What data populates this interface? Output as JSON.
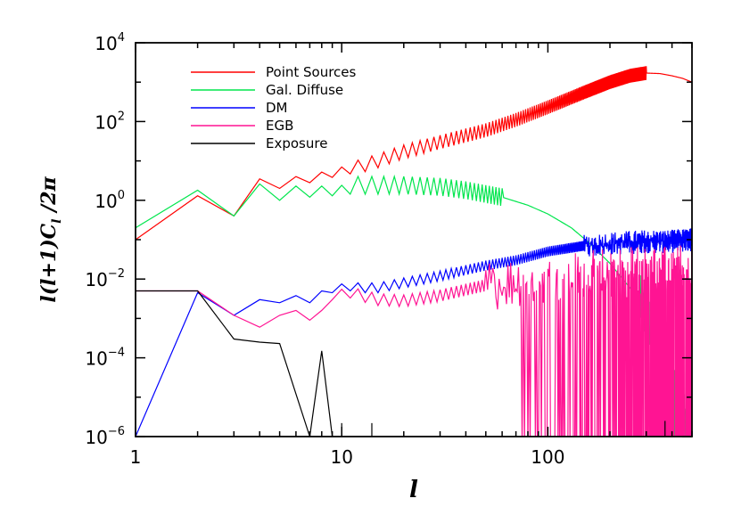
{
  "chart_data": {
    "type": "line",
    "title": "",
    "xlabel": "l",
    "ylabel": "l(l+1)C_l /2π",
    "x_scale": "log",
    "y_scale": "log",
    "xlim": [
      1,
      500
    ],
    "ylim": [
      1e-06,
      10000.0
    ],
    "x_ticks": [
      {
        "value": 1,
        "label": "1"
      },
      {
        "value": 10,
        "label": "10"
      },
      {
        "value": 100,
        "label": "100"
      }
    ],
    "y_ticks": [
      {
        "value": 1e-06,
        "base": "10",
        "exp": "−6"
      },
      {
        "value": 0.0001,
        "base": "10",
        "exp": "−4"
      },
      {
        "value": 0.01,
        "base": "10",
        "exp": "−2"
      },
      {
        "value": 1,
        "base": "10",
        "exp": "0"
      },
      {
        "value": 100,
        "base": "10",
        "exp": "2"
      },
      {
        "value": 10000,
        "base": "10",
        "exp": "4"
      }
    ],
    "legend_position": "top-left",
    "series": [
      {
        "name": "Point Sources",
        "color": "#ff0000",
        "style": "smooth",
        "points": [
          [
            1,
            0.1
          ],
          [
            2,
            1.3
          ],
          [
            3,
            0.4
          ],
          [
            4,
            3.5
          ],
          [
            5,
            2.0
          ],
          [
            6,
            4.0
          ],
          [
            7,
            2.8
          ],
          [
            8,
            5.2
          ],
          [
            9,
            3.8
          ],
          [
            10,
            7.0
          ],
          [
            12,
            7.0
          ],
          [
            15,
            10
          ],
          [
            20,
            17
          ],
          [
            30,
            30
          ],
          [
            50,
            60
          ],
          [
            70,
            110
          ],
          [
            100,
            230
          ],
          [
            150,
            550
          ],
          [
            200,
            1000
          ],
          [
            250,
            1450
          ],
          [
            300,
            1700
          ],
          [
            350,
            1650
          ],
          [
            400,
            1450
          ],
          [
            450,
            1250
          ],
          [
            500,
            1000
          ]
        ],
        "zigzag_amp": 0.35,
        "zigzag_start": 10,
        "zigzag_end": 300,
        "zigzag_step": 1
      },
      {
        "name": "Gal. Diffuse",
        "color": "#00e64d",
        "style": "smooth",
        "points": [
          [
            1,
            0.2
          ],
          [
            2,
            1.8
          ],
          [
            3,
            0.4
          ],
          [
            4,
            2.6
          ],
          [
            5,
            1.0
          ],
          [
            6,
            2.3
          ],
          [
            7,
            1.2
          ],
          [
            8,
            2.3
          ],
          [
            9,
            1.3
          ],
          [
            10,
            2.4
          ],
          [
            15,
            2.4
          ],
          [
            20,
            2.4
          ],
          [
            30,
            2.2
          ],
          [
            40,
            1.8
          ],
          [
            60,
            1.2
          ],
          [
            80,
            0.75
          ],
          [
            100,
            0.45
          ],
          [
            130,
            0.2
          ],
          [
            160,
            0.08
          ],
          [
            200,
            0.025
          ],
          [
            250,
            0.006
          ],
          [
            300,
            0.0012
          ],
          [
            350,
            0.0002
          ],
          [
            400,
            3e-05
          ],
          [
            450,
            4e-06
          ],
          [
            500,
            2e-06
          ]
        ],
        "zigzag_amp": 0.45,
        "zigzag_start": 10,
        "zigzag_end": 60,
        "zigzag_step": 1,
        "noise_amp": 1.6,
        "noise_start": 280
      },
      {
        "name": "DM",
        "color": "#0000ff",
        "style": "smooth",
        "points": [
          [
            1,
            1e-06
          ],
          [
            2,
            0.0045
          ],
          [
            3,
            0.0012
          ],
          [
            4,
            0.003
          ],
          [
            5,
            0.0025
          ],
          [
            6,
            0.0038
          ],
          [
            7,
            0.0025
          ],
          [
            8,
            0.005
          ],
          [
            9,
            0.0045
          ],
          [
            10,
            0.0075
          ],
          [
            12,
            0.006
          ],
          [
            15,
            0.006
          ],
          [
            20,
            0.008
          ],
          [
            30,
            0.012
          ],
          [
            50,
            0.022
          ],
          [
            70,
            0.03
          ],
          [
            100,
            0.05
          ],
          [
            150,
            0.07
          ],
          [
            200,
            0.08
          ],
          [
            300,
            0.09
          ],
          [
            400,
            0.09
          ],
          [
            500,
            0.1
          ]
        ],
        "zigzag_amp": 0.25,
        "zigzag_start": 10,
        "zigzag_end": 500,
        "zigzag_step": 1,
        "noise_amp": 0.35,
        "noise_start": 150
      },
      {
        "name": "EGB",
        "color": "#ff1493",
        "style": "smooth",
        "points": [
          [
            1,
            0.005
          ],
          [
            2,
            0.005
          ],
          [
            3,
            0.0012
          ],
          [
            4,
            0.0006
          ],
          [
            5,
            0.0012
          ],
          [
            6,
            0.0016
          ],
          [
            7,
            0.0009
          ],
          [
            8,
            0.0016
          ],
          [
            9,
            0.003
          ],
          [
            10,
            0.0055
          ],
          [
            12,
            0.004
          ],
          [
            15,
            0.003
          ],
          [
            20,
            0.0028
          ],
          [
            30,
            0.0038
          ],
          [
            50,
            0.007
          ],
          [
            70,
            0.0085
          ],
          [
            100,
            0.011
          ],
          [
            150,
            0.012
          ],
          [
            200,
            0.015
          ],
          [
            300,
            0.016
          ],
          [
            500,
            0.016
          ]
        ],
        "zigzag_amp": 0.3,
        "zigzag_start": 10,
        "zigzag_end": 500,
        "zigzag_step": 1,
        "noise_amp": 1.0,
        "noise_start": 50,
        "dropout_start": 75,
        "dropout_prob": 0.45
      },
      {
        "name": "Exposure",
        "color": "#000000",
        "style": "polyline",
        "points": [
          [
            1,
            0.005
          ],
          [
            2,
            0.005
          ],
          [
            3,
            0.0003
          ],
          [
            4,
            0.00025
          ],
          [
            5,
            0.00023
          ],
          [
            7,
            1e-06
          ],
          [
            8,
            0.00015
          ],
          [
            9,
            1e-06
          ]
        ],
        "spikes": [
          [
            10,
            2.2e-06
          ],
          [
            14,
            2.2e-06
          ],
          [
            370,
            2.5e-06
          ]
        ]
      }
    ]
  }
}
